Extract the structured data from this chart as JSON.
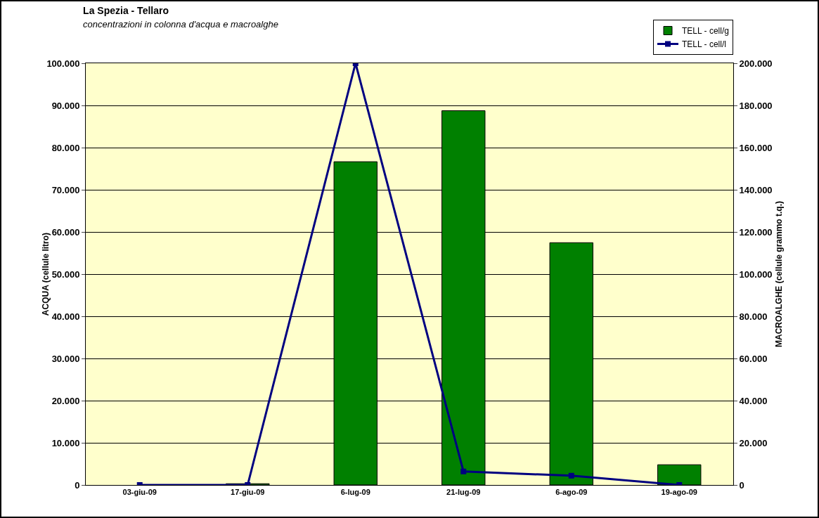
{
  "chart_data": {
    "type": "bar",
    "title": "La Spezia - Tellaro",
    "subtitle": "concentrazioni in colonna d'acqua e macroalghe",
    "ylabel": "ACQUA (cellule litro)",
    "y2label": "MACROALGHE (cellule grammo t.q.)",
    "categories": [
      "03-giu-09",
      "17-giu-09",
      "6-lug-09",
      "21-lug-09",
      "6-ago-09",
      "19-ago-09"
    ],
    "series": [
      {
        "name": "TELL - cell/g",
        "axis": "y2",
        "color": "#008000",
        "values": [
          null,
          600,
          153300,
          177500,
          114900,
          9600
        ]
      },
      {
        "name": "TELL - cell/l",
        "type": "line",
        "axis": "y",
        "color": "#000080",
        "marker": "square",
        "line_style": "solid",
        "values": [
          0,
          0,
          100000,
          3200,
          2200,
          0
        ]
      }
    ],
    "ylim": [
      0,
      100000
    ],
    "yticks": [
      {
        "value": 0,
        "label": "0"
      },
      {
        "value": 10000,
        "label": "10.000"
      },
      {
        "value": 20000,
        "label": "20.000"
      },
      {
        "value": 30000,
        "label": "30.000"
      },
      {
        "value": 40000,
        "label": "40.000"
      },
      {
        "value": 50000,
        "label": "50.000"
      },
      {
        "value": 60000,
        "label": "60.000"
      },
      {
        "value": 70000,
        "label": "70.000"
      },
      {
        "value": 80000,
        "label": "80.000"
      },
      {
        "value": 90000,
        "label": "90.000"
      },
      {
        "value": 100000,
        "label": "100.000"
      }
    ],
    "y2lim": [
      0,
      200000
    ],
    "y2ticks": [
      {
        "value": 0,
        "label": "0"
      },
      {
        "value": 20000,
        "label": "20.000"
      },
      {
        "value": 40000,
        "label": "40.000"
      },
      {
        "value": 60000,
        "label": "60.000"
      },
      {
        "value": 80000,
        "label": "80.000"
      },
      {
        "value": 100000,
        "label": "100.000"
      },
      {
        "value": 120000,
        "label": "120.000"
      },
      {
        "value": 140000,
        "label": "140.000"
      },
      {
        "value": 160000,
        "label": "160.000"
      },
      {
        "value": 180000,
        "label": "180.000"
      },
      {
        "value": 200000,
        "label": "200.000"
      }
    ],
    "grid": "y",
    "legend": "top right"
  }
}
